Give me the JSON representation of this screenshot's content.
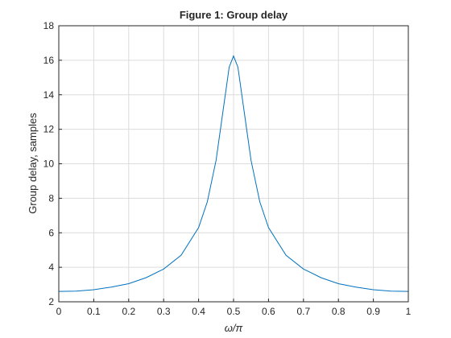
{
  "chart_data": {
    "type": "line",
    "title": "Figure 1: Group delay",
    "x_label": "ω/π",
    "y_label": "Group delay, samples",
    "x": [
      0,
      0.05,
      0.1,
      0.15,
      0.2,
      0.25,
      0.3,
      0.35,
      0.4,
      0.425,
      0.45,
      0.4625,
      0.475,
      0.4875,
      0.5,
      0.5125,
      0.525,
      0.5375,
      0.55,
      0.575,
      0.6,
      0.65,
      0.7,
      0.75,
      0.8,
      0.85,
      0.9,
      0.95,
      1
    ],
    "series": [
      {
        "name": "Group delay",
        "color": "#0072bd",
        "values": [
          2.6,
          2.62,
          2.7,
          2.85,
          3.05,
          3.4,
          3.9,
          4.7,
          6.3,
          7.8,
          10.2,
          12.0,
          13.8,
          15.6,
          16.25,
          15.6,
          13.8,
          12.0,
          10.2,
          7.8,
          6.3,
          4.7,
          3.9,
          3.4,
          3.05,
          2.85,
          2.7,
          2.62,
          2.6
        ]
      }
    ],
    "xlim": [
      0,
      1
    ],
    "ylim": [
      2,
      18
    ],
    "xticks": [
      0,
      0.1,
      0.2,
      0.3,
      0.4,
      0.5,
      0.6,
      0.7,
      0.8,
      0.9,
      1
    ],
    "yticks": [
      2,
      4,
      6,
      8,
      10,
      12,
      14,
      16,
      18
    ],
    "grid": true
  }
}
